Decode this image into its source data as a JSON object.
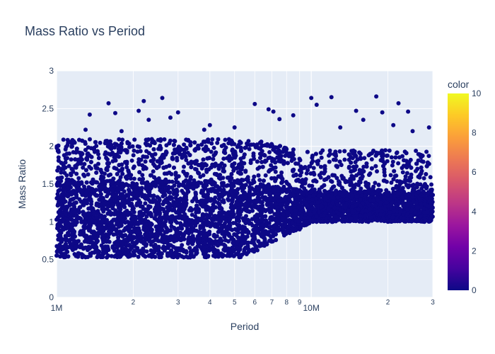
{
  "chart_data": {
    "type": "scatter",
    "title": "Mass Ratio vs Period",
    "xlabel": "Period",
    "ylabel": "Mass Ratio",
    "x_scale": "log",
    "xlim": [
      1000000,
      30000000
    ],
    "ylim": [
      0,
      3
    ],
    "grid": true,
    "x_ticks": [
      {
        "value": 1000000,
        "label": "1M",
        "major": true
      },
      {
        "value": 2000000,
        "label": "2",
        "major": false
      },
      {
        "value": 3000000,
        "label": "3",
        "major": false
      },
      {
        "value": 4000000,
        "label": "4",
        "major": false
      },
      {
        "value": 5000000,
        "label": "5",
        "major": false
      },
      {
        "value": 6000000,
        "label": "6",
        "major": false
      },
      {
        "value": 7000000,
        "label": "7",
        "major": false
      },
      {
        "value": 8000000,
        "label": "8",
        "major": false
      },
      {
        "value": 9000000,
        "label": "9",
        "major": false
      },
      {
        "value": 10000000,
        "label": "10M",
        "major": true
      },
      {
        "value": 20000000,
        "label": "2",
        "major": false
      },
      {
        "value": 30000000,
        "label": "3",
        "major": false
      }
    ],
    "y_ticks": [
      {
        "value": 0,
        "label": "0"
      },
      {
        "value": 0.5,
        "label": "0.5"
      },
      {
        "value": 1,
        "label": "1"
      },
      {
        "value": 1.5,
        "label": "1.5"
      },
      {
        "value": 2,
        "label": "2"
      },
      {
        "value": 2.5,
        "label": "2.5"
      },
      {
        "value": 3,
        "label": "3"
      }
    ],
    "marker_color": "#0d0887",
    "colorbar": {
      "title": "color",
      "range": [
        0,
        10
      ],
      "ticks": [
        0,
        2,
        4,
        6,
        8,
        10
      ],
      "colorscale": [
        "#0d0887",
        "#46039f",
        "#7201a8",
        "#9c179e",
        "#bd3786",
        "#d8576b",
        "#ed7953",
        "#fb9f3a",
        "#fdca26",
        "#f0f921"
      ]
    },
    "series": [
      {
        "values_description": "dense cloud of points",
        "points": [
          [
            1050000,
            0.55
          ],
          [
            1100000,
            1.2
          ],
          [
            1150000,
            0.9
          ],
          [
            1200000,
            1.4
          ],
          [
            1250000,
            0.7
          ],
          [
            1300000,
            2.22
          ],
          [
            1350000,
            2.42
          ],
          [
            1400000,
            1.1
          ],
          [
            1450000,
            0.6
          ],
          [
            1500000,
            1.6
          ],
          [
            1600000,
            2.57
          ],
          [
            1700000,
            2.44
          ],
          [
            1800000,
            2.2
          ],
          [
            1900000,
            1.0
          ],
          [
            2000000,
            0.8
          ],
          [
            2100000,
            2.47
          ],
          [
            2200000,
            2.6
          ],
          [
            2300000,
            2.35
          ],
          [
            2400000,
            1.3
          ],
          [
            2500000,
            0.75
          ],
          [
            2600000,
            2.64
          ],
          [
            2800000,
            2.38
          ],
          [
            3000000,
            2.45
          ],
          [
            3200000,
            1.2
          ],
          [
            3500000,
            0.65
          ],
          [
            3800000,
            2.22
          ],
          [
            4000000,
            2.28
          ],
          [
            4200000,
            1.9
          ],
          [
            4500000,
            1.05
          ],
          [
            4800000,
            0.95
          ],
          [
            5000000,
            2.25
          ],
          [
            5300000,
            1.95
          ],
          [
            5600000,
            1.15
          ],
          [
            6000000,
            2.56
          ],
          [
            6300000,
            1.9
          ],
          [
            6800000,
            2.49
          ],
          [
            7100000,
            2.46
          ],
          [
            7500000,
            2.36
          ],
          [
            8000000,
            1.25
          ],
          [
            8500000,
            2.41
          ],
          [
            9000000,
            0.9
          ],
          [
            9500000,
            1.1
          ],
          [
            10000000,
            2.64
          ],
          [
            10500000,
            2.55
          ],
          [
            11000000,
            1.2
          ],
          [
            12000000,
            2.65
          ],
          [
            13000000,
            2.25
          ],
          [
            14000000,
            1.15
          ],
          [
            15000000,
            2.47
          ],
          [
            16000000,
            2.35
          ],
          [
            17000000,
            1.1
          ],
          [
            18000000,
            2.66
          ],
          [
            19000000,
            2.45
          ],
          [
            20000000,
            1.3
          ],
          [
            21000000,
            2.28
          ],
          [
            22000000,
            2.57
          ],
          [
            23000000,
            1.05
          ],
          [
            24000000,
            2.46
          ],
          [
            25000000,
            2.2
          ],
          [
            27000000,
            1.2
          ],
          [
            29000000,
            2.25
          ]
        ]
      }
    ]
  }
}
